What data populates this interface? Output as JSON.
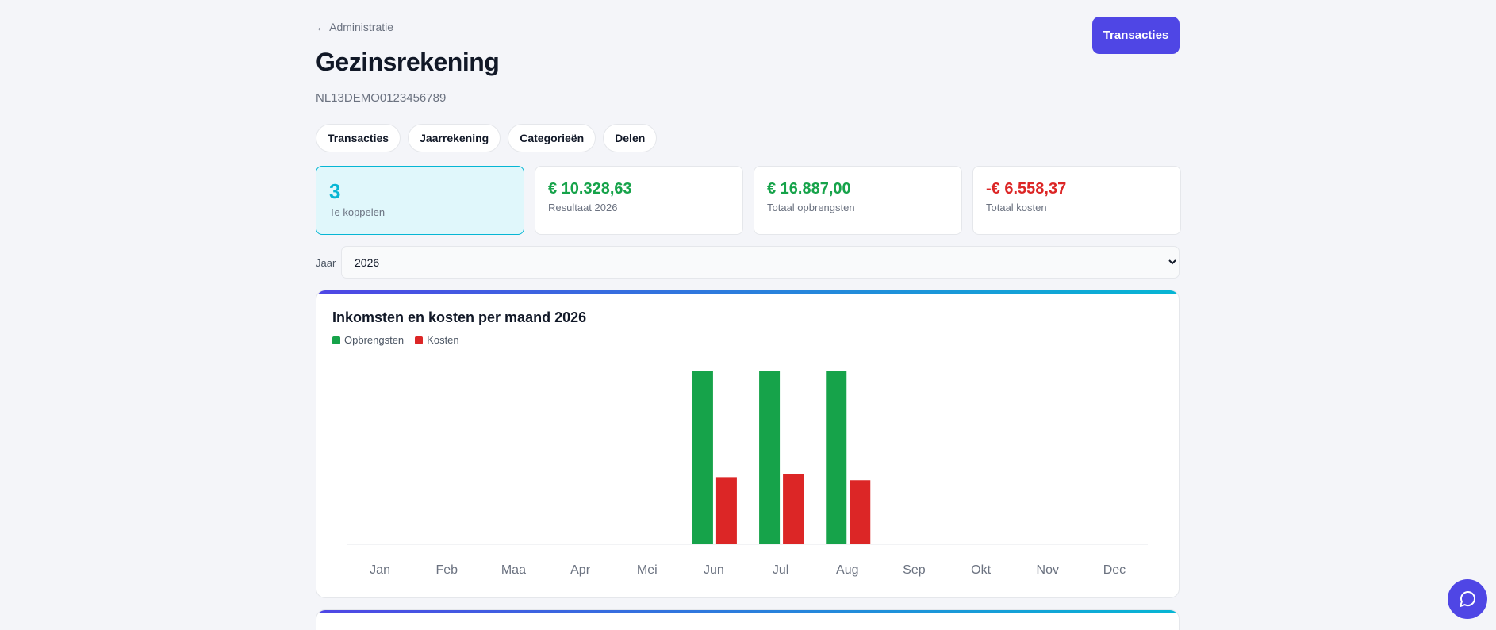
{
  "header": {
    "back_label": "← Administratie",
    "title": "Gezinsrekening",
    "iban": "NL13DEMO0123456789",
    "primary_button": "Transacties"
  },
  "tabs": [
    {
      "label": "Transacties"
    },
    {
      "label": "Jaarrekening"
    },
    {
      "label": "Categorieën"
    },
    {
      "label": "Delen"
    }
  ],
  "stats": [
    {
      "value": "3",
      "label": "Te koppelen"
    },
    {
      "value": "€ 10.328,63",
      "label": "Resultaat 2026"
    },
    {
      "value": "€ 16.887,00",
      "label": "Totaal opbrengsten"
    },
    {
      "value": "-€ 6.558,37",
      "label": "Totaal kosten"
    }
  ],
  "year_filter": {
    "label": "Jaar",
    "selected": "2026"
  },
  "colors": {
    "accent": "#4f46e5",
    "cyan": "#06b6d4",
    "income": "#16a34a",
    "costs": "#dc2626"
  },
  "chart_data": {
    "type": "bar",
    "title": "Inkomsten en kosten per maand 2026",
    "categories": [
      "Jan",
      "Feb",
      "Maa",
      "Apr",
      "Mei",
      "Jun",
      "Jul",
      "Aug",
      "Sep",
      "Okt",
      "Nov",
      "Dec"
    ],
    "series": [
      {
        "name": "Opbrengsten",
        "color": "#16a34a",
        "values": [
          0,
          0,
          0,
          0,
          0,
          5629,
          5629,
          5629,
          0,
          0,
          0,
          0
        ]
      },
      {
        "name": "Kosten",
        "color": "#dc2626",
        "values": [
          0,
          0,
          0,
          0,
          0,
          2185,
          2290,
          2085,
          0,
          0,
          0,
          0
        ]
      }
    ],
    "ylim": [
      0,
      5629
    ],
    "grid": false,
    "legend": "top-left"
  },
  "chat": {
    "icon": "chat-bubble-icon"
  }
}
